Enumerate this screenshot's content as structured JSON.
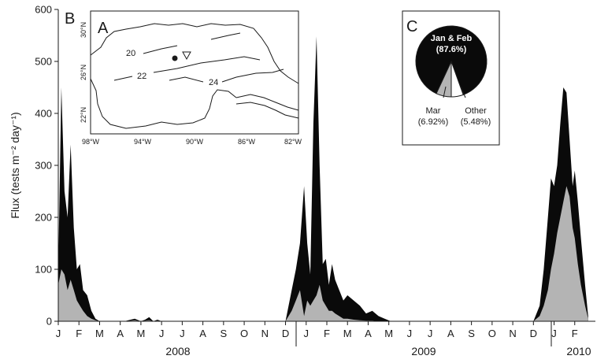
{
  "colors": {
    "total": "#0a0a0a",
    "march": "#b4b4b4",
    "other": "#ffffff",
    "ink": "#1a1a1a"
  },
  "chart_data": [
    {
      "type": "area",
      "panel": "B",
      "ylabel": "Flux (tests m⁻² day⁻¹)",
      "ylim": [
        0,
        600
      ],
      "yticks": [
        0,
        100,
        200,
        300,
        400,
        500,
        600
      ],
      "xlim": [
        0,
        26
      ],
      "months": [
        "J",
        "F",
        "M",
        "A",
        "M",
        "J",
        "J",
        "A",
        "S",
        "O",
        "N",
        "D",
        "J",
        "F",
        "M",
        "A",
        "M",
        "J",
        "J",
        "A",
        "S",
        "O",
        "N",
        "D",
        "J",
        "F"
      ],
      "years": [
        "2008",
        "2009",
        "2010"
      ],
      "series": [
        {
          "x": [
            0,
            0.15,
            0.3,
            0.45,
            0.6,
            0.75,
            0.9,
            1.05,
            1.2,
            1.4,
            1.6,
            1.8,
            2.0,
            2.2,
            2.5,
            3,
            3.2,
            3.5,
            3.7,
            4,
            4.2,
            4.4,
            4.6,
            4.8,
            5,
            5.3,
            5.6,
            6,
            7,
            8,
            9,
            10,
            11,
            11.3,
            11.5,
            11.7,
            11.9,
            12.05,
            12.2,
            12.35,
            12.5,
            12.65,
            12.8,
            12.95,
            13.1,
            13.25,
            13.4,
            13.6,
            13.8,
            14.0,
            14.3,
            14.6,
            14.9,
            15.2,
            15.5,
            15.8,
            16.1,
            16.3,
            16.6,
            17,
            18,
            19,
            20,
            21,
            22,
            23,
            23.3,
            23.5,
            23.7,
            23.85,
            24.0,
            24.15,
            24.3,
            24.45,
            24.6,
            24.75,
            24.9,
            25.0,
            25.15,
            25.3,
            25.5,
            25.65
          ],
          "y": [
            100,
            450,
            250,
            200,
            340,
            180,
            100,
            110,
            60,
            50,
            20,
            5,
            0,
            0,
            0,
            0,
            0,
            3,
            5,
            0,
            3,
            8,
            0,
            3,
            0,
            0,
            0,
            0,
            0,
            0,
            0,
            0,
            0,
            60,
            100,
            150,
            260,
            150,
            90,
            380,
            548,
            300,
            110,
            120,
            70,
            110,
            80,
            60,
            40,
            50,
            40,
            30,
            15,
            20,
            10,
            5,
            0,
            0,
            0,
            0,
            0,
            0,
            0,
            0,
            0,
            0,
            30,
            100,
            200,
            275,
            260,
            300,
            380,
            450,
            440,
            350,
            260,
            290,
            230,
            160,
            70,
            10
          ]
        },
        {
          "x": [
            0,
            0.15,
            0.3,
            0.45,
            0.6,
            0.75,
            0.9,
            1.05,
            1.2,
            1.4,
            1.6,
            1.8,
            2.0,
            2.2,
            2.5,
            3,
            3.2,
            3.5,
            3.7,
            4,
            4.2,
            4.4,
            4.6,
            4.8,
            5,
            5.3,
            5.6,
            6,
            7,
            8,
            9,
            10,
            11,
            11.3,
            11.5,
            11.7,
            11.9,
            12.05,
            12.2,
            12.35,
            12.5,
            12.65,
            12.8,
            12.95,
            13.1,
            13.25,
            13.4,
            13.6,
            13.8,
            14.0,
            14.3,
            14.6,
            14.9,
            15.2,
            15.5,
            15.8,
            16.1,
            16.3,
            16.6,
            17,
            18,
            19,
            20,
            21,
            22,
            23,
            23.3,
            23.5,
            23.7,
            23.85,
            24.0,
            24.15,
            24.3,
            24.45,
            24.6,
            24.75,
            24.9,
            25.0,
            25.15,
            25.3,
            25.5,
            25.65
          ],
          "y": [
            70,
            100,
            90,
            60,
            80,
            60,
            40,
            30,
            20,
            10,
            5,
            2,
            0,
            0,
            0,
            0,
            0,
            1,
            2,
            0,
            1,
            2,
            0,
            1,
            0,
            0,
            0,
            0,
            0,
            0,
            0,
            0,
            0,
            20,
            40,
            60,
            10,
            40,
            30,
            40,
            50,
            70,
            40,
            30,
            20,
            20,
            15,
            10,
            5,
            5,
            3,
            2,
            1,
            1,
            0,
            0,
            0,
            0,
            0,
            0,
            0,
            0,
            0,
            0,
            0,
            0,
            10,
            30,
            60,
            100,
            130,
            170,
            200,
            230,
            260,
            240,
            180,
            160,
            110,
            70,
            30,
            5
          ]
        }
      ]
    },
    {
      "type": "pie",
      "panel": "C",
      "labels": [
        "Jan & Feb",
        "Mar",
        "Other"
      ],
      "values": [
        87.6,
        6.92,
        5.48
      ],
      "value_labels": [
        "(87.6%)",
        "(6.92%)",
        "(5.48%)"
      ]
    }
  ],
  "map": {
    "panel": "A",
    "lon_ticks": [
      "98°W",
      "94°W",
      "90°W",
      "86°W",
      "82°W"
    ],
    "lat_ticks": [
      "30°N",
      "26°N",
      "22°N"
    ],
    "isotherm_labels": [
      "20",
      "22",
      "24"
    ],
    "marker_filled": "circle",
    "marker_open": "triangle"
  }
}
